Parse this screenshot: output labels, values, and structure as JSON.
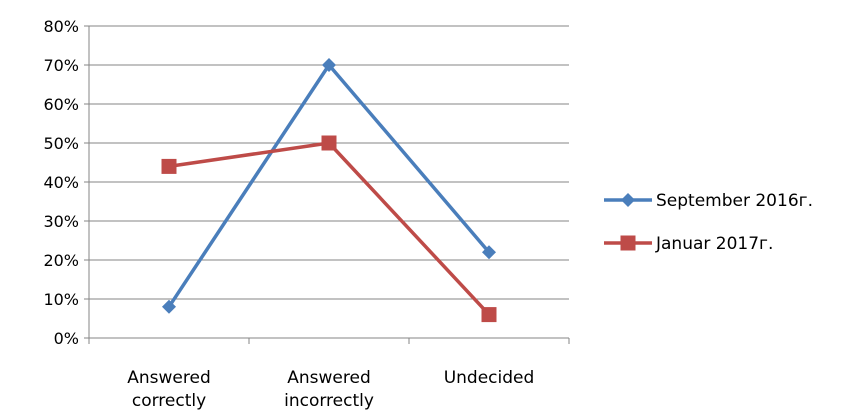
{
  "chart_data": {
    "type": "line",
    "categories": [
      [
        "Answered",
        "correctly"
      ],
      [
        "Answered",
        "incorrectly"
      ],
      [
        "Undecided"
      ]
    ],
    "series": [
      {
        "name": "September 2016г.",
        "values": [
          8,
          70,
          22
        ],
        "color": "#4a7ebb",
        "marker": "diamond"
      },
      {
        "name": "Januar 2017г.",
        "values": [
          44,
          50,
          6
        ],
        "color": "#be4b48",
        "marker": "square"
      }
    ],
    "y_ticks": [
      "0%",
      "10%",
      "20%",
      "30%",
      "40%",
      "50%",
      "60%",
      "70%",
      "80%"
    ],
    "ylim": [
      0,
      80
    ],
    "y_unit": "%",
    "grid": true,
    "legend_position": "right"
  }
}
